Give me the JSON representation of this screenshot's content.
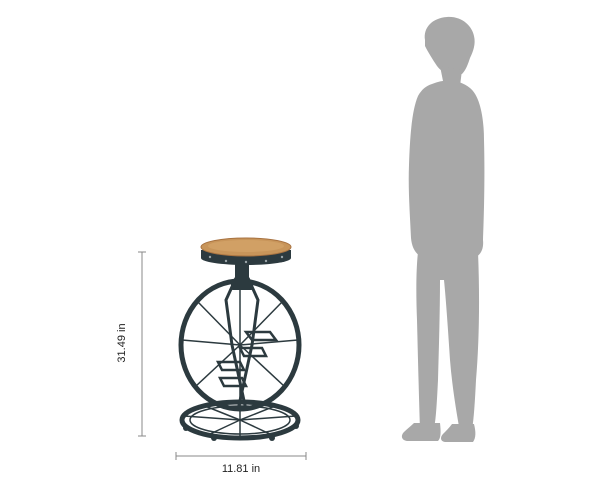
{
  "dimensions": {
    "height_label": "31.49 in",
    "width_label": "11.81 in"
  },
  "colors": {
    "background": "#ffffff",
    "silhouette": "#a8a8a8",
    "seat_wood": "#c8955a",
    "metal_frame": "#2c3a3f",
    "dimension_line": "#888888"
  },
  "icons": {
    "figure": "human-silhouette",
    "product": "bicycle-bar-stool"
  }
}
